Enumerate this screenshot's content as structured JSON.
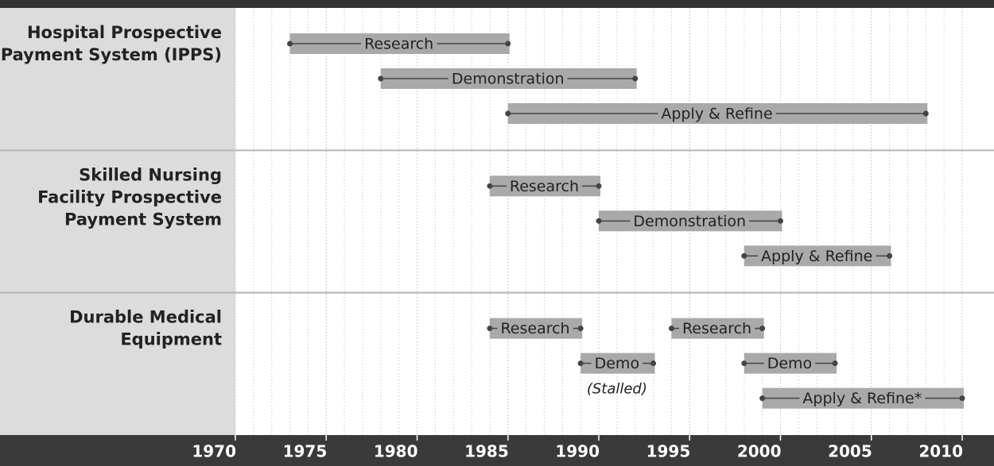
{
  "chart_data": {
    "type": "timeline",
    "xlim": [
      1970,
      2010
    ],
    "xticks": [
      1970,
      1975,
      1980,
      1985,
      1990,
      1995,
      2000,
      2005,
      2010
    ],
    "grid": true,
    "bar_color": "#a9a9a9",
    "line_color": "#444444",
    "groups": [
      {
        "label": [
          "Hospital Prospective",
          "Payment System (IPPS)"
        ],
        "lanes": [
          [
            {
              "label": "Research",
              "start": 1973,
              "end": 1985
            }
          ],
          [
            {
              "label": "Demonstration",
              "start": 1978,
              "end": 1992
            }
          ],
          [
            {
              "label": "Apply & Refine",
              "start": 1985,
              "end": 2008
            }
          ]
        ]
      },
      {
        "label": [
          "Skilled Nursing",
          "Facility Prospective",
          "Payment System"
        ],
        "lanes": [
          [
            {
              "label": "Research",
              "start": 1984,
              "end": 1990
            }
          ],
          [
            {
              "label": "Demonstration",
              "start": 1990,
              "end": 2000
            }
          ],
          [
            {
              "label": "Apply & Refine",
              "start": 1998,
              "end": 2006
            }
          ]
        ]
      },
      {
        "label": [
          "Durable Medical",
          "Equipment"
        ],
        "lanes": [
          [
            {
              "label": "Research",
              "start": 1984,
              "end": 1989
            },
            {
              "label": "Research",
              "start": 1994,
              "end": 1999
            }
          ],
          [
            {
              "label": "Demo",
              "start": 1989,
              "end": 1993,
              "note": "(Stalled)"
            },
            {
              "label": "Demo",
              "start": 1998,
              "end": 2003
            }
          ],
          [
            {
              "label": "Apply & Refine*",
              "start": 1999,
              "end": 2010
            }
          ]
        ]
      }
    ]
  }
}
